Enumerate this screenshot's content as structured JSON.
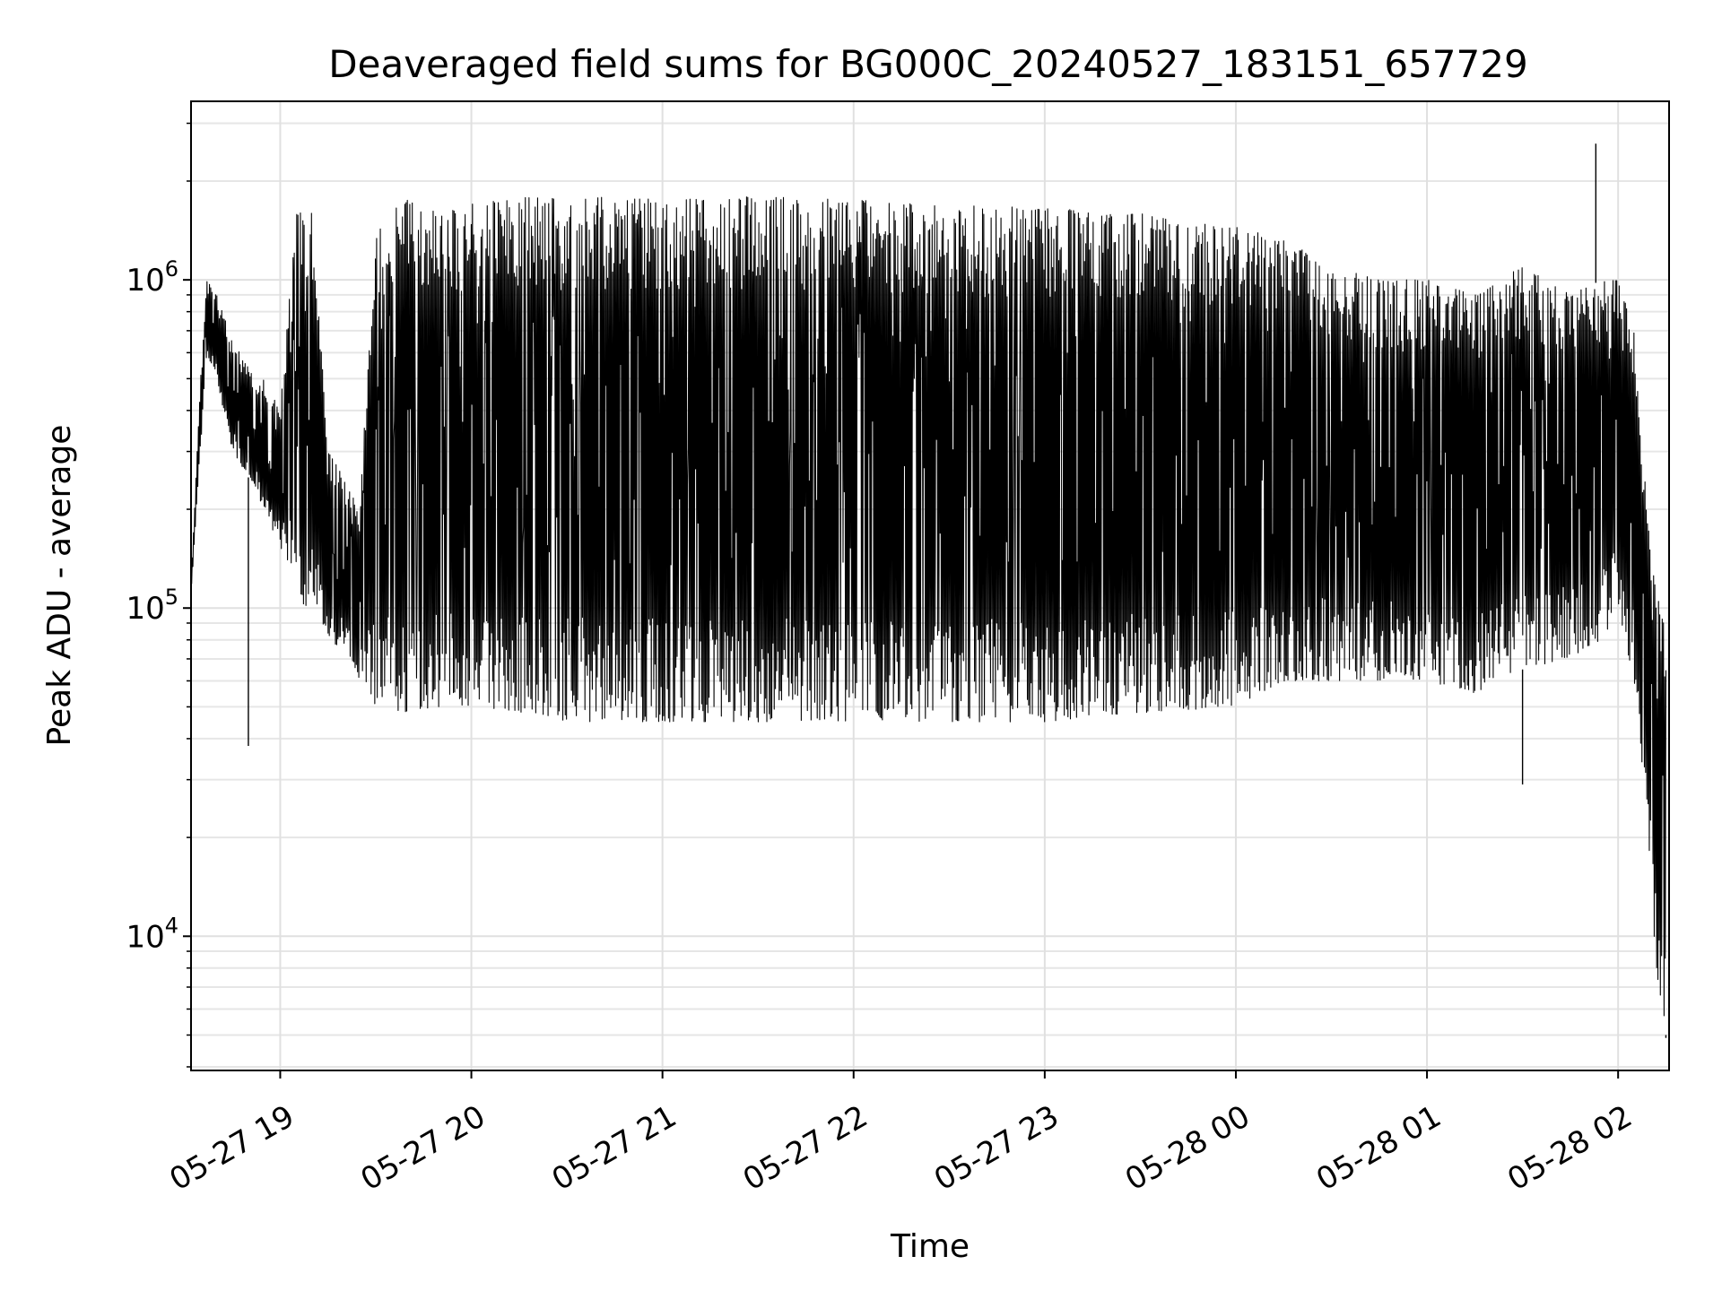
{
  "chart_data": {
    "type": "line",
    "title": "Deaveraged field sums for BG000C_20240527_183151_657729",
    "xlabel": "Time",
    "ylabel": "Peak ADU - average",
    "yscale": "log",
    "xlim": [
      "2024-05-27 18:32",
      "2024-05-28 02:16"
    ],
    "ylim": [
      3900,
      3500000
    ],
    "grid": true,
    "legend": "none",
    "line_color": "#000000",
    "x_ticks": [
      {
        "time": "2024-05-27 19:00",
        "label": "05-27 19"
      },
      {
        "time": "2024-05-27 20:00",
        "label": "05-27 20"
      },
      {
        "time": "2024-05-27 21:00",
        "label": "05-27 21"
      },
      {
        "time": "2024-05-27 22:00",
        "label": "05-27 22"
      },
      {
        "time": "2024-05-27 23:00",
        "label": "05-27 23"
      },
      {
        "time": "2024-05-28 00:00",
        "label": "05-28 00"
      },
      {
        "time": "2024-05-28 01:00",
        "label": "05-28 01"
      },
      {
        "time": "2024-05-28 02:00",
        "label": "05-28 02"
      }
    ],
    "y_ticks": [
      {
        "value": 10000,
        "base": "10",
        "exp": "4"
      },
      {
        "value": 100000,
        "base": "10",
        "exp": "5"
      },
      {
        "value": 1000000,
        "base": "10",
        "exp": "6"
      }
    ],
    "series": [
      {
        "envelope": {
          "time": [
            "2024-05-27 18:32",
            "2024-05-27 18:35",
            "2024-05-27 18:37",
            "2024-05-27 18:40",
            "2024-05-27 18:45",
            "2024-05-27 18:50",
            "2024-05-27 18:55",
            "2024-05-27 19:00",
            "2024-05-27 19:05",
            "2024-05-27 19:10",
            "2024-05-27 19:15",
            "2024-05-27 19:20",
            "2024-05-27 19:25",
            "2024-05-27 19:30",
            "2024-05-27 19:40",
            "2024-05-27 19:50",
            "2024-05-27 20:00",
            "2024-05-27 20:10",
            "2024-05-27 20:20",
            "2024-05-27 20:30",
            "2024-05-27 20:45",
            "2024-05-27 21:00",
            "2024-05-27 21:30",
            "2024-05-27 22:00",
            "2024-05-27 22:30",
            "2024-05-27 23:00",
            "2024-05-27 23:30",
            "2024-05-28 00:00",
            "2024-05-28 00:15",
            "2024-05-28 00:30",
            "2024-05-28 00:45",
            "2024-05-28 01:00",
            "2024-05-28 01:15",
            "2024-05-28 01:30",
            "2024-05-28 01:45",
            "2024-05-28 01:55",
            "2024-05-28 02:00",
            "2024-05-28 02:05",
            "2024-05-28 02:08",
            "2024-05-28 02:10",
            "2024-05-28 02:12",
            "2024-05-28 02:14",
            "2024-05-28 02:15"
          ],
          "high": [
            120000,
            500000,
            1000000,
            900000,
            650000,
            550000,
            500000,
            400000,
            1600000,
            1600000,
            300000,
            250000,
            200000,
            1600000,
            1750000,
            1600000,
            1700000,
            1750000,
            1800000,
            1750000,
            1800000,
            1750000,
            1800000,
            1750000,
            1700000,
            1650000,
            1600000,
            1450000,
            1350000,
            1100000,
            1000000,
            1000000,
            900000,
            1100000,
            900000,
            1000000,
            1000000,
            700000,
            300000,
            150000,
            110000,
            100000,
            90000
          ],
          "low": [
            110000,
            300000,
            600000,
            500000,
            300000,
            250000,
            200000,
            150000,
            110000,
            95000,
            80000,
            75000,
            60000,
            50000,
            48000,
            50000,
            50000,
            48000,
            48000,
            45000,
            45000,
            45000,
            45000,
            45000,
            45000,
            45000,
            48000,
            50000,
            60000,
            60000,
            60000,
            60000,
            55000,
            65000,
            70000,
            80000,
            100000,
            60000,
            30000,
            15000,
            8000,
            5500,
            5000
          ]
        },
        "spikes": [
          {
            "time": "2024-05-27 18:50",
            "value": 38000
          },
          {
            "time": "2024-05-28 01:30",
            "value": 29000
          },
          {
            "time": "2024-05-28 01:53",
            "value": 2600000
          },
          {
            "time": "2024-05-28 02:15",
            "value": 4900
          }
        ]
      }
    ]
  }
}
